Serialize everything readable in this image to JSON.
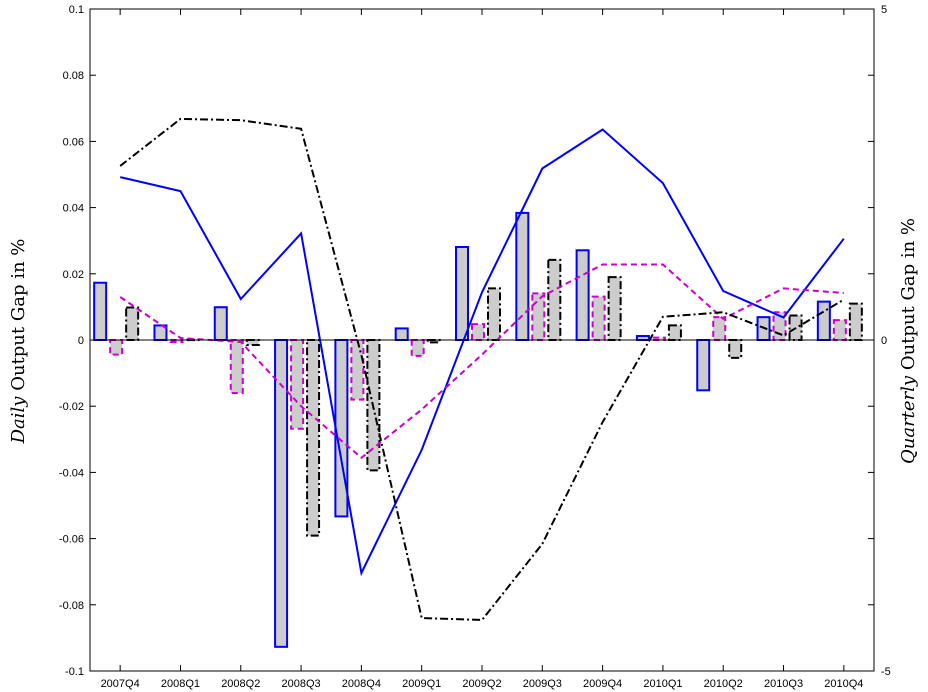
{
  "chart_data": {
    "type": "bar",
    "ylabel_left": "Daily Output Gap in %",
    "ylabel_left_italic_word": "Daily",
    "ylabel_left_rest": " Output Gap in %",
    "ylabel_right": "Quarterly Output Gap in %",
    "ylabel_right_italic_word": "Quarterly",
    "ylabel_right_rest": " Output Gap in %",
    "ylim_left": [
      -0.1,
      0.1
    ],
    "ylim_right": [
      -5,
      5
    ],
    "yticks_left": [
      "0.1",
      "0.08",
      "0.06",
      "0.04",
      "0.02",
      "0",
      "-0.02",
      "-0.04",
      "-0.06",
      "-0.08",
      "-0.1"
    ],
    "yticks_right": [
      "5",
      "0",
      "-5"
    ],
    "grid": false,
    "categories": [
      "2007Q4",
      "2008Q1",
      "2008Q2",
      "2008Q3",
      "2008Q4",
      "2009Q1",
      "2009Q2",
      "2009Q3",
      "2009Q4",
      "2010Q1",
      "2010Q2",
      "2010Q3",
      "2010Q4"
    ],
    "bar_series": [
      {
        "style": "solid",
        "color": "#0000ff",
        "fill": "#cccccc",
        "values": [
          0.0173,
          0.0044,
          0.0099,
          -0.0927,
          -0.0533,
          0.0035,
          0.0281,
          0.0384,
          0.0271,
          0.0012,
          -0.0152,
          0.0069,
          0.0116
        ]
      },
      {
        "style": "dashed",
        "color": "#cc00cc",
        "fill": "#cccccc",
        "values": [
          -0.0044,
          -0.0006,
          -0.016,
          -0.0268,
          -0.018,
          -0.0048,
          0.0048,
          0.0141,
          0.0131,
          0.0007,
          0.0069,
          0.0084,
          0.006
        ]
      },
      {
        "style": "dashdot",
        "color": "#000000",
        "fill": "#cccccc",
        "values": [
          0.0098,
          0.0001,
          -0.0015,
          -0.0591,
          -0.0394,
          -0.0007,
          0.0156,
          0.0242,
          0.019,
          0.0044,
          -0.0054,
          0.0074,
          0.011
        ]
      }
    ],
    "line_series": [
      {
        "style": "solid",
        "color": "#0000ff",
        "axis": "right",
        "values": [
          2.46,
          2.25,
          0.62,
          1.61,
          -3.52,
          -1.66,
          0.72,
          2.59,
          3.18,
          2.37,
          0.74,
          0.34,
          1.53
        ]
      },
      {
        "style": "dashed",
        "color": "#cc00cc",
        "axis": "right",
        "values": [
          0.65,
          0.03,
          -0.03,
          -1.0,
          -1.78,
          -1.05,
          -0.22,
          0.66,
          1.14,
          1.14,
          0.32,
          0.78,
          0.71
        ]
      },
      {
        "style": "dashdot",
        "color": "#000000",
        "axis": "right",
        "values": [
          2.63,
          3.34,
          3.32,
          3.19,
          -0.23,
          -4.2,
          -4.23,
          -3.08,
          -1.24,
          0.35,
          0.42,
          0.07,
          0.61
        ]
      }
    ]
  }
}
